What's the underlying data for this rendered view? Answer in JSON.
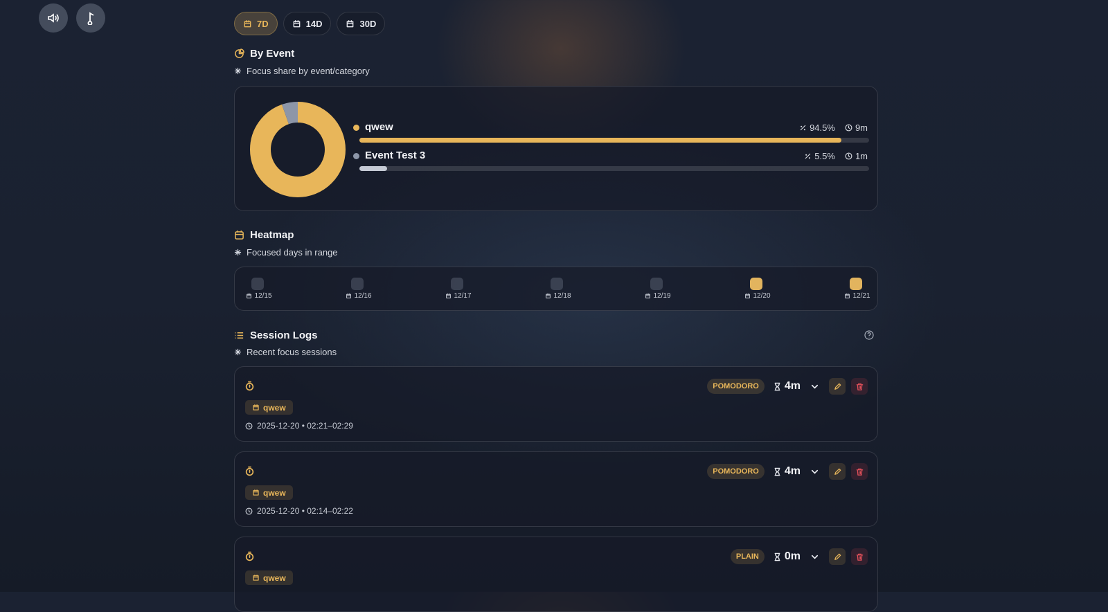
{
  "ranges": [
    {
      "label": "7D",
      "active": true
    },
    {
      "label": "14D",
      "active": false
    },
    {
      "label": "30D",
      "active": false
    }
  ],
  "by_event": {
    "title": "By Event",
    "subtitle": "Focus share by event/category",
    "items": [
      {
        "name": "qwew",
        "share": 94.5,
        "share_label": "94.5%",
        "duration": "9m",
        "color": "#e8b65a"
      },
      {
        "name": "Event Test 3",
        "share": 5.5,
        "share_label": "5.5%",
        "duration": "1m",
        "color": "#8d96a8"
      }
    ]
  },
  "heatmap": {
    "title": "Heatmap",
    "subtitle": "Focused days in range",
    "days": [
      {
        "label": "12/15",
        "focused": false
      },
      {
        "label": "12/16",
        "focused": false
      },
      {
        "label": "12/17",
        "focused": false
      },
      {
        "label": "12/18",
        "focused": false
      },
      {
        "label": "12/19",
        "focused": false
      },
      {
        "label": "12/20",
        "focused": true
      },
      {
        "label": "12/21",
        "focused": true
      }
    ]
  },
  "session_logs": {
    "title": "Session Logs",
    "subtitle": "Recent focus sessions",
    "sessions": [
      {
        "mode": "POMODORO",
        "duration": "4m",
        "tag": "qwew",
        "time": "2025-12-20 • 02:21–02:29"
      },
      {
        "mode": "POMODORO",
        "duration": "4m",
        "tag": "qwew",
        "time": "2025-12-20 • 02:14–02:22"
      },
      {
        "mode": "PLAIN",
        "duration": "0m",
        "tag": "qwew"
      }
    ]
  }
}
